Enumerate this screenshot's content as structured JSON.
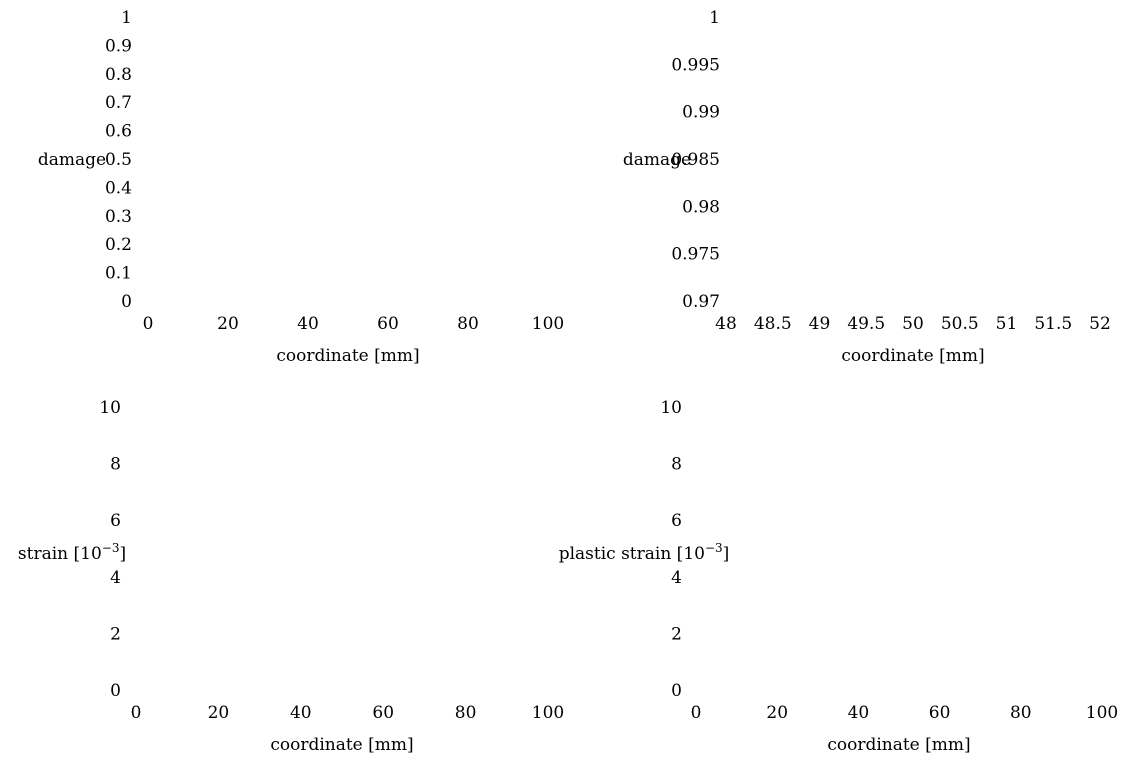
{
  "chart_data": [
    {
      "type": "line",
      "title": "",
      "xlabel": "coordinate [mm]",
      "ylabel": "damage",
      "xlim": [
        0,
        100
      ],
      "ylim": [
        0,
        1
      ],
      "xticks": [
        "0",
        "20",
        "40",
        "60",
        "80",
        "100"
      ],
      "yticks": [
        "0",
        "0.1",
        "0.2",
        "0.3",
        "0.4",
        "0.5",
        "0.6",
        "0.7",
        "0.8",
        "0.9",
        "1"
      ],
      "series": [],
      "grid": false
    },
    {
      "type": "line",
      "title": "",
      "xlabel": "coordinate [mm]",
      "ylabel": "damage",
      "xlim": [
        48,
        52
      ],
      "ylim": [
        0.97,
        1
      ],
      "xticks": [
        "48",
        "48.5",
        "49",
        "49.5",
        "50",
        "50.5",
        "51",
        "51.5",
        "52"
      ],
      "yticks": [
        "0.97",
        "0.975",
        "0.98",
        "0.985",
        "0.99",
        "0.995",
        "1"
      ],
      "series": [],
      "grid": false
    },
    {
      "type": "line",
      "title": "",
      "xlabel": "coordinate [mm]",
      "ylabel": "strain [10",
      "ylabel_sup": "−3",
      "ylabel_tail": "]",
      "xlim": [
        0,
        100
      ],
      "ylim": [
        0,
        10
      ],
      "xticks": [
        "0",
        "20",
        "40",
        "60",
        "80",
        "100"
      ],
      "yticks": [
        "0",
        "2",
        "4",
        "6",
        "8",
        "10"
      ],
      "series": [],
      "grid": false
    },
    {
      "type": "line",
      "title": "",
      "xlabel": "coordinate [mm]",
      "ylabel": "plastic strain [10",
      "ylabel_sup": "−3",
      "ylabel_tail": "]",
      "xlim": [
        0,
        100
      ],
      "ylim": [
        0,
        10
      ],
      "xticks": [
        "0",
        "20",
        "40",
        "60",
        "80",
        "100"
      ],
      "yticks": [
        "0",
        "2",
        "4",
        "6",
        "8",
        "10"
      ],
      "series": [],
      "grid": false
    }
  ]
}
